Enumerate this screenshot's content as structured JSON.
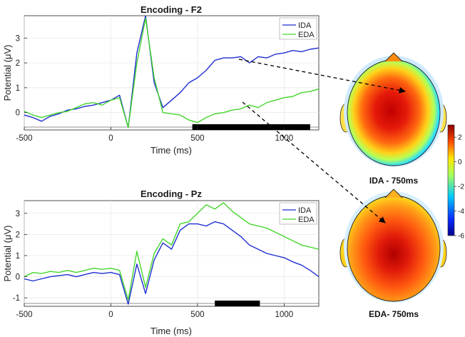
{
  "chart_data": [
    {
      "type": "line",
      "title": "Encoding - F2",
      "xlabel": "Time (ms)",
      "ylabel": "Potential (μV)",
      "xlim": [
        -500,
        1200
      ],
      "ylim": [
        -0.7,
        3.9
      ],
      "xticks": [
        -500,
        0,
        500,
        1000
      ],
      "yticks": [
        0,
        1,
        2,
        3
      ],
      "legend": "top-right",
      "significance_bar": [
        [
          470,
          1150
        ]
      ],
      "series": [
        {
          "name": "IDA",
          "color": "#1f2fd0",
          "x": [
            -500,
            -450,
            -400,
            -350,
            -300,
            -250,
            -200,
            -150,
            -100,
            -50,
            0,
            50,
            100,
            150,
            200,
            250,
            300,
            350,
            400,
            450,
            500,
            550,
            600,
            650,
            700,
            750,
            800,
            850,
            900,
            950,
            1000,
            1050,
            1100,
            1150,
            1200
          ],
          "y": [
            -0.1,
            -0.2,
            -0.35,
            -0.15,
            -0.05,
            0.1,
            0.15,
            0.25,
            0.3,
            0.4,
            0.5,
            0.7,
            -0.6,
            2.4,
            3.9,
            1.2,
            0.2,
            0.5,
            0.8,
            1.2,
            1.4,
            1.7,
            2.1,
            2.2,
            2.2,
            2.25,
            2.0,
            2.25,
            2.2,
            2.35,
            2.4,
            2.5,
            2.45,
            2.55,
            2.6
          ]
        },
        {
          "name": "EDA",
          "color": "#44d62c",
          "x": [
            -500,
            -450,
            -400,
            -350,
            -300,
            -250,
            -200,
            -150,
            -100,
            -50,
            0,
            50,
            100,
            150,
            200,
            250,
            300,
            350,
            400,
            450,
            500,
            550,
            600,
            650,
            700,
            750,
            800,
            850,
            900,
            950,
            1000,
            1050,
            1100,
            1150,
            1200
          ],
          "y": [
            0.05,
            -0.1,
            -0.2,
            -0.1,
            0.0,
            0.05,
            0.2,
            0.35,
            0.4,
            0.3,
            0.5,
            0.6,
            -0.6,
            2.0,
            3.8,
            1.4,
            0.0,
            -0.05,
            -0.1,
            -0.3,
            -0.4,
            -0.2,
            -0.05,
            0.0,
            0.1,
            0.15,
            0.3,
            0.2,
            0.4,
            0.5,
            0.6,
            0.65,
            0.8,
            0.85,
            0.95
          ]
        }
      ]
    },
    {
      "type": "line",
      "title": "Encoding - Pz",
      "xlabel": "Time (ms)",
      "ylabel": "Potential (μV)",
      "xlim": [
        -500,
        1200
      ],
      "ylim": [
        -1.4,
        3.6
      ],
      "xticks": [
        -500,
        0,
        500,
        1000
      ],
      "yticks": [
        -1,
        0,
        1,
        2,
        3
      ],
      "legend": "top-right",
      "significance_bar": [
        [
          600,
          860
        ]
      ],
      "series": [
        {
          "name": "IDA",
          "color": "#1f2fd0",
          "x": [
            -500,
            -450,
            -400,
            -350,
            -300,
            -250,
            -200,
            -150,
            -100,
            -50,
            0,
            50,
            100,
            150,
            200,
            250,
            300,
            350,
            400,
            450,
            500,
            550,
            600,
            650,
            700,
            750,
            800,
            850,
            900,
            950,
            1000,
            1050,
            1100,
            1150,
            1200
          ],
          "y": [
            -0.1,
            -0.2,
            -0.1,
            0.0,
            0.05,
            0.1,
            0.0,
            0.1,
            0.2,
            0.15,
            0.2,
            0.1,
            -1.3,
            0.6,
            -0.8,
            0.8,
            1.6,
            1.3,
            2.2,
            2.5,
            2.5,
            2.4,
            2.6,
            2.5,
            2.2,
            1.9,
            1.5,
            1.3,
            1.1,
            1.0,
            0.9,
            0.7,
            0.55,
            0.3,
            0.0
          ]
        },
        {
          "name": "EDA",
          "color": "#44d62c",
          "x": [
            -500,
            -450,
            -400,
            -350,
            -300,
            -250,
            -200,
            -150,
            -100,
            -50,
            0,
            50,
            100,
            150,
            200,
            250,
            300,
            350,
            400,
            450,
            500,
            550,
            600,
            650,
            700,
            750,
            800,
            850,
            900,
            950,
            1000,
            1050,
            1100,
            1150,
            1200
          ],
          "y": [
            0.0,
            0.2,
            0.15,
            0.25,
            0.2,
            0.3,
            0.2,
            0.3,
            0.4,
            0.35,
            0.4,
            0.3,
            -1.1,
            1.2,
            -0.5,
            1.1,
            1.8,
            1.5,
            2.5,
            2.6,
            3.0,
            3.4,
            3.2,
            3.5,
            3.1,
            2.8,
            2.5,
            2.4,
            2.3,
            2.1,
            1.9,
            1.7,
            1.5,
            1.4,
            1.3
          ]
        }
      ]
    },
    {
      "type": "heatmap",
      "title": "IDA - 750ms",
      "colorbar": {
        "range": [
          -6,
          3
        ],
        "ticks": [
          2,
          0,
          -2,
          -4,
          -6
        ]
      }
    },
    {
      "type": "heatmap",
      "title": "EDA- 750ms",
      "colorbar": {
        "range": [
          -6,
          3
        ],
        "ticks": [
          2,
          0,
          -2,
          -4,
          -6
        ]
      }
    }
  ],
  "colors": {
    "ida": "#1f2fd0",
    "eda": "#44d62c",
    "axis": "#222222"
  }
}
